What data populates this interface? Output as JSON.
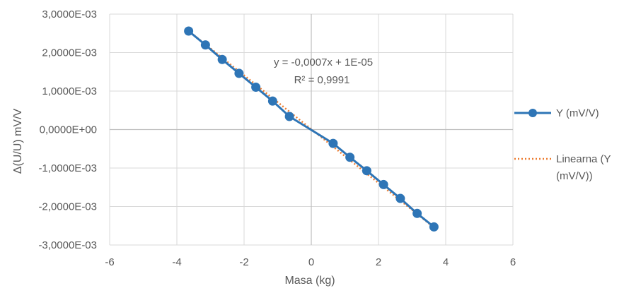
{
  "chart_data": {
    "type": "scatter",
    "xlabel": "Masa (kg)",
    "ylabel": "Δ(U/U) mV/V",
    "xlim": [
      -6,
      6
    ],
    "ylim": [
      -0.003,
      0.003
    ],
    "x_ticks": [
      -6,
      -4,
      -2,
      0,
      2,
      4,
      6
    ],
    "x_tick_labels": [
      "-6",
      "-4",
      "-2",
      "0",
      "2",
      "4",
      "6"
    ],
    "y_ticks": [
      0.003,
      0.002,
      0.001,
      0,
      -0.001,
      -0.002,
      -0.003
    ],
    "y_tick_labels": [
      "3,0000E-03",
      "2,0000E-03",
      "1,0000E-03",
      "0,0000E+00",
      "-1,0000E-03",
      "-2,0000E-03",
      "-3,0000E-03"
    ],
    "grid": true,
    "legend_position": "right",
    "series": [
      {
        "name": "Y (mV/V)",
        "color": "#2E75B6",
        "marker": "circle",
        "x": [
          -3.65,
          -3.15,
          -2.65,
          -2.15,
          -1.65,
          -1.15,
          -0.65,
          0.65,
          1.15,
          1.65,
          2.15,
          2.65,
          3.15,
          3.65
        ],
        "y": [
          0.00256,
          0.0022,
          0.00182,
          0.00146,
          0.0011,
          0.00074,
          0.00034,
          -0.00036,
          -0.00072,
          -0.00107,
          -0.00143,
          -0.00179,
          -0.00218,
          -0.00253
        ]
      }
    ],
    "trendline": {
      "name": "Linearna (Y (mV/V))",
      "color": "#ED7D31",
      "style": "dotted",
      "slope": -0.0007,
      "intercept": 1e-05,
      "equation": "y = -0,0007x + 1E-05",
      "r2": "R² = 0,9991"
    }
  }
}
